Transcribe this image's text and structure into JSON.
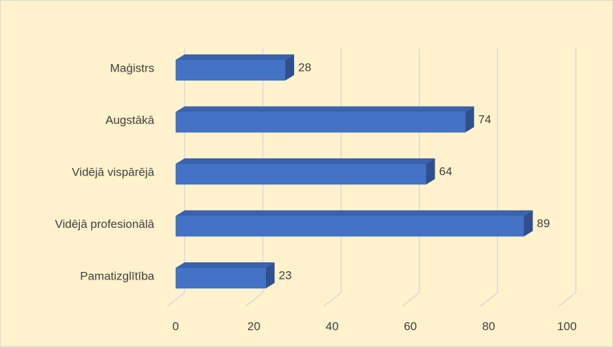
{
  "chart_data": {
    "type": "bar3d_h",
    "categories": [
      "Maģistrs",
      "Augstākā",
      "Vidējā vispārējā",
      "Vidējā profesionālā",
      "Pamatizglītība"
    ],
    "values": [
      28,
      74,
      64,
      89,
      23
    ],
    "color": "#4472c4",
    "xlim": [
      0,
      100
    ],
    "xticks": [
      0,
      20,
      40,
      60,
      80,
      100
    ],
    "grid": true
  }
}
